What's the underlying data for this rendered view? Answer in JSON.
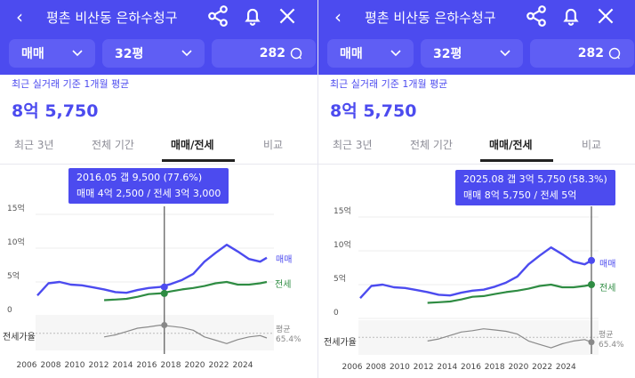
{
  "header": {
    "back_icon": "chevron-left",
    "title": "평촌 비산동 은하수청구",
    "share_icon": "share",
    "bell_icon": "bell",
    "close_icon": "close"
  },
  "filters": {
    "deal_type": "매매",
    "area": "32평",
    "comments": "282"
  },
  "summary": {
    "subtitle": "최근 실거래 기준 1개월 평균",
    "price": "8억 5,750"
  },
  "tabs": [
    "최근 3년",
    "전체 기간",
    "매매/전세",
    "비교"
  ],
  "chart": {
    "y_ticks": [
      "15억",
      "10억",
      "5억",
      "0"
    ],
    "x_ticks": [
      "2006",
      "2008",
      "2010",
      "2012",
      "2014",
      "2016",
      "2018",
      "2020",
      "2022",
      "2024"
    ],
    "series_sale": "매매",
    "series_lease": "전세",
    "ratio_label": "전세가율",
    "avg_label": "평균",
    "avg_value": "65.4%"
  },
  "panels": [
    {
      "tooltip": {
        "line1": "2016.05  갭 9,500 (77.6%)",
        "line2": "매매 4억 2,500 / 전세 3억 3,000"
      }
    },
    {
      "tooltip": {
        "line1": "2025.08  갭 3억 5,750 (58.3%)",
        "line2": "매매 8억 5,750 / 전세 5억"
      }
    }
  ],
  "colors": {
    "brand": "#4c4bef",
    "sale": "#4c4bef",
    "lease": "#2f8c43",
    "ratio": "#8a8a8a"
  },
  "chart_data": {
    "type": "line",
    "x": [
      2005.0,
      2006.0,
      2007.0,
      2008.0,
      2009.0,
      2010.0,
      2011.0,
      2012.0,
      2013.0,
      2014.0,
      2015.0,
      2016.0,
      2017.0,
      2018.0,
      2019.0,
      2020.0,
      2021.0,
      2022.0,
      2023.0,
      2024.0,
      2025.0,
      2025.6
    ],
    "series": [
      {
        "name": "매매",
        "values": [
          3.0,
          4.8,
          5.0,
          4.6,
          4.5,
          4.2,
          3.9,
          3.5,
          3.4,
          3.8,
          4.1,
          4.25,
          4.7,
          5.3,
          6.2,
          8.0,
          9.3,
          10.5,
          9.5,
          8.4,
          8.0,
          8.575
        ]
      },
      {
        "name": "전세",
        "values": [
          null,
          null,
          null,
          null,
          null,
          null,
          2.3,
          2.4,
          2.5,
          2.8,
          3.2,
          3.3,
          3.6,
          3.9,
          4.1,
          4.4,
          4.8,
          5.0,
          4.6,
          4.6,
          4.8,
          5.0
        ]
      },
      {
        "name": "전세가율",
        "values": [
          null,
          null,
          null,
          null,
          null,
          null,
          60,
          63,
          68,
          73,
          75,
          77.6,
          76,
          74,
          70,
          60,
          55,
          50,
          56,
          60,
          62,
          58.3
        ]
      }
    ],
    "ylim": [
      0,
      15
    ],
    "y_ticks": [
      0,
      5,
      10,
      15
    ],
    "avg_ratio": 65.4,
    "highlight": [
      2016.4,
      2025.6
    ]
  }
}
